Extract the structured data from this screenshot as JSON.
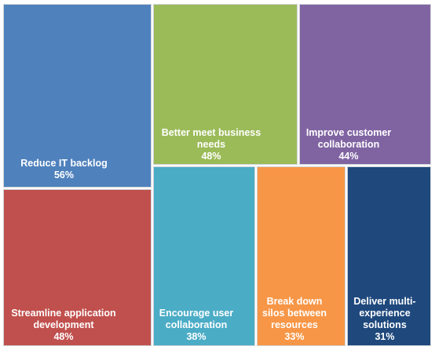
{
  "chart_data": {
    "type": "treemap",
    "items": [
      {
        "label": "Reduce IT backlog",
        "value": 56,
        "display": "56%",
        "color": "#4f81bd"
      },
      {
        "label": "Better meet business needs",
        "value": 48,
        "display": "48%",
        "color": "#9bbb59"
      },
      {
        "label": "Improve customer collaboration",
        "value": 44,
        "display": "44%",
        "color": "#8064a2"
      },
      {
        "label": "Streamline application development",
        "value": 48,
        "display": "48%",
        "color": "#c0504d"
      },
      {
        "label": "Encourage user collaboration",
        "value": 38,
        "display": "38%",
        "color": "#4bacc6"
      },
      {
        "label": "Break down silos between resources",
        "value": 33,
        "display": "33%",
        "color": "#f79646"
      },
      {
        "label": "Deliver multi-experience solutions",
        "value": 31,
        "display": "31%",
        "color": "#1f497d"
      }
    ]
  }
}
